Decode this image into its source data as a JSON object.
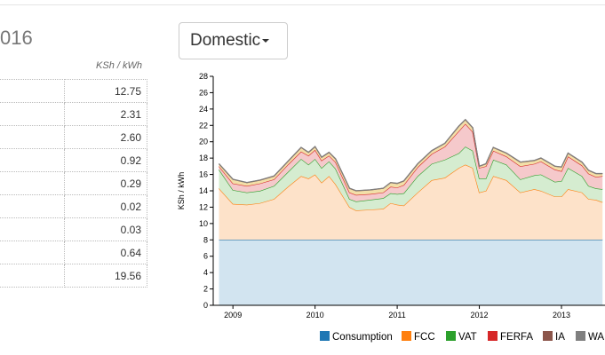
{
  "header": {
    "title": "016"
  },
  "table": {
    "unit": "KSh / kWh",
    "rows": [
      "12.75",
      "2.31",
      "2.60",
      "0.92",
      "0.29",
      "0.02",
      "0.03",
      "0.64",
      "19.56"
    ]
  },
  "dropdown": {
    "label": "Domestic"
  },
  "chart_data": {
    "type": "area",
    "stacked": true,
    "y_label": "KSh / kWh",
    "x": [
      2008.83,
      2009.0,
      2009.17,
      2009.33,
      2009.5,
      2009.67,
      2009.83,
      2009.92,
      2010.0,
      2010.08,
      2010.17,
      2010.25,
      2010.42,
      2010.5,
      2010.67,
      2010.83,
      2010.92,
      2011.0,
      2011.08,
      2011.25,
      2011.42,
      2011.58,
      2011.75,
      2011.83,
      2011.92,
      2012.0,
      2012.08,
      2012.17,
      2012.33,
      2012.5,
      2012.67,
      2012.75,
      2012.92,
      2013.0,
      2013.08,
      2013.25,
      2013.33,
      2013.42,
      2013.5
    ],
    "xlim": [
      2008.76,
      2013.53
    ],
    "xticks": [
      2009,
      2010,
      2011,
      2012,
      2013
    ],
    "ylim": [
      0,
      28
    ],
    "yticks": [
      0,
      2,
      4,
      6,
      8,
      10,
      12,
      14,
      16,
      18,
      20,
      22,
      24,
      26,
      28
    ],
    "series": [
      {
        "name": "Consumption",
        "color": "#1f77b4",
        "fill": "#d2e4f0",
        "values": [
          8,
          8,
          8,
          8,
          8,
          8,
          8,
          8,
          8,
          8,
          8,
          8,
          8,
          8,
          8,
          8,
          8,
          8,
          8,
          8,
          8,
          8,
          8,
          8,
          8,
          8,
          8,
          8,
          8,
          8,
          8,
          8,
          8,
          8,
          8,
          8,
          8,
          8,
          8
        ]
      },
      {
        "name": "FCC",
        "color": "#ff7f0e",
        "fill": "#fde2c9",
        "values": [
          6.3,
          4.4,
          4.3,
          4.5,
          5.0,
          6.5,
          7.8,
          7.5,
          8.0,
          7.0,
          7.8,
          6.8,
          4.0,
          3.6,
          3.7,
          3.8,
          4.5,
          4.3,
          4.2,
          5.8,
          7.3,
          7.6,
          8.8,
          9.2,
          8.8,
          5.8,
          6.0,
          7.8,
          7.3,
          5.8,
          6.2,
          6.0,
          5.3,
          5.3,
          6.2,
          5.8,
          5.0,
          4.9,
          4.6
        ]
      },
      {
        "name": "VAT",
        "color": "#2ca02c",
        "fill": "#d5ecd0",
        "values": [
          2.3,
          1.7,
          1.5,
          1.5,
          1.6,
          1.8,
          2.1,
          1.7,
          1.9,
          1.8,
          1.8,
          1.9,
          1.0,
          1.1,
          1.2,
          1.3,
          1.2,
          1.3,
          1.5,
          2.0,
          2.0,
          2.2,
          1.8,
          2.2,
          2.1,
          1.7,
          1.5,
          2.0,
          1.9,
          1.6,
          1.7,
          2.0,
          1.8,
          1.9,
          2.6,
          2.0,
          1.6,
          1.4,
          1.6
        ]
      },
      {
        "name": "FERFA",
        "color": "#d62728",
        "fill": "#f5c9cb",
        "values": [
          0.4,
          0.8,
          0.8,
          0.9,
          0.8,
          0.9,
          0.9,
          1.1,
          1.1,
          0.9,
          0.7,
          0.8,
          0.8,
          0.8,
          0.7,
          0.7,
          0.8,
          0.8,
          1.0,
          1.1,
          1.2,
          1.6,
          2.7,
          2.8,
          2.3,
          1.3,
          1.5,
          1.1,
          1.0,
          1.6,
          1.4,
          1.6,
          1.5,
          1.2,
          1.4,
          1.3,
          1.5,
          1.4,
          1.6
        ]
      },
      {
        "name": "IA",
        "color": "#8c564b",
        "fill": "#f2dfa8",
        "values": [
          0.3,
          0.5,
          0.4,
          0.4,
          0.4,
          0.4,
          0.5,
          0.4,
          0.4,
          0.4,
          0.4,
          0.4,
          0.5,
          0.5,
          0.5,
          0.5,
          0.5,
          0.5,
          0.5,
          0.4,
          0.4,
          0.4,
          0.6,
          0.5,
          0.5,
          0.2,
          0.3,
          0.4,
          0.4,
          0.5,
          0.4,
          0.4,
          0.4,
          0.5,
          0.4,
          0.4,
          0.4,
          0.4,
          0.3
        ]
      },
      {
        "name": "WA",
        "color": "#7f7f7f",
        "fill": "#e0c050",
        "values": [
          0.02,
          0.02,
          0.02,
          0.02,
          0.02,
          0.02,
          0.02,
          0.02,
          0.02,
          0.02,
          0.02,
          0.02,
          0.02,
          0.02,
          0.02,
          0.02,
          0.02,
          0.02,
          0.02,
          0.02,
          0.02,
          0.02,
          0.02,
          0.02,
          0.02,
          0.02,
          0.02,
          0.02,
          0.02,
          0.02,
          0.02,
          0.02,
          0.02,
          0.02,
          0.02,
          0.02,
          0.02,
          0.02,
          0.02
        ]
      }
    ]
  }
}
